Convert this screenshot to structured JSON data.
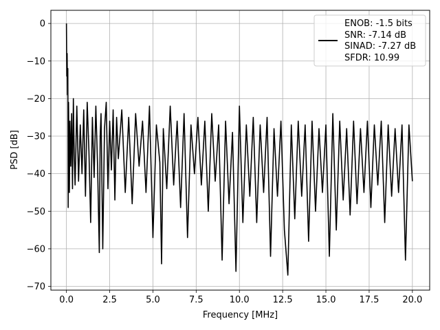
{
  "chart_data": {
    "type": "line",
    "xlabel": "Frequency [MHz]",
    "ylabel": "PSD [dB]",
    "xlim": [
      -0.9,
      21.0
    ],
    "ylim": [
      -71,
      3.5
    ],
    "xticks": [
      0.0,
      2.5,
      5.0,
      7.5,
      10.0,
      12.5,
      15.0,
      17.5,
      20.0
    ],
    "xtick_labels": [
      "0.0",
      "2.5",
      "5.0",
      "7.5",
      "10.0",
      "12.5",
      "15.0",
      "17.5",
      "20.0"
    ],
    "yticks": [
      0,
      -10,
      -20,
      -30,
      -40,
      -50,
      -60,
      -70
    ],
    "ytick_labels": [
      "0",
      "−10",
      "−20",
      "−30",
      "−40",
      "−50",
      "−60",
      "−70"
    ],
    "grid": true,
    "legend_position": "top-right",
    "legend": [
      "ENOB: -1.5 bits",
      "SNR: -7.14 dB",
      "SINAD: -7.27 dB",
      "SFDR: 10.99"
    ],
    "series": [
      {
        "color": "#000000",
        "x": [
          0.0,
          0.02,
          0.04,
          0.06,
          0.08,
          0.1,
          0.12,
          0.14,
          0.17,
          0.2,
          0.25,
          0.3,
          0.35,
          0.4,
          0.45,
          0.5,
          0.6,
          0.7,
          0.8,
          0.9,
          1.0,
          1.1,
          1.2,
          1.3,
          1.4,
          1.5,
          1.6,
          1.7,
          1.8,
          1.9,
          1.95,
          2.0,
          2.1,
          2.2,
          2.3,
          2.4,
          2.5,
          2.6,
          2.7,
          2.8,
          2.9,
          3.0,
          3.2,
          3.4,
          3.6,
          3.8,
          4.0,
          4.2,
          4.4,
          4.6,
          4.8,
          5.0,
          5.2,
          5.4,
          5.5,
          5.6,
          5.8,
          6.0,
          6.2,
          6.4,
          6.6,
          6.8,
          7.0,
          7.2,
          7.4,
          7.6,
          7.8,
          8.0,
          8.2,
          8.4,
          8.6,
          8.8,
          9.0,
          9.2,
          9.4,
          9.6,
          9.8,
          10.0,
          10.2,
          10.4,
          10.6,
          10.8,
          11.0,
          11.2,
          11.4,
          11.6,
          11.8,
          12.0,
          12.2,
          12.4,
          12.6,
          12.8,
          13.0,
          13.2,
          13.4,
          13.6,
          13.8,
          14.0,
          14.2,
          14.4,
          14.6,
          14.8,
          15.0,
          15.2,
          15.4,
          15.6,
          15.8,
          16.0,
          16.2,
          16.4,
          16.6,
          16.8,
          17.0,
          17.2,
          17.4,
          17.6,
          17.8,
          18.0,
          18.2,
          18.4,
          18.6,
          18.8,
          19.0,
          19.2,
          19.4,
          19.6,
          19.8,
          20.0
        ],
        "y": [
          0.0,
          -14.0,
          -8.0,
          -19.0,
          -12.0,
          -49.0,
          -21.0,
          -30.0,
          -45.0,
          -26.0,
          -38.0,
          -24.0,
          -44.0,
          -20.0,
          -35.0,
          -43.0,
          -22.0,
          -42.0,
          -27.0,
          -40.0,
          -23.0,
          -46.0,
          -21.0,
          -34.0,
          -53.0,
          -25.0,
          -41.0,
          -22.0,
          -38.0,
          -61.0,
          -30.0,
          -24.0,
          -60.0,
          -28.0,
          -21.0,
          -44.0,
          -26.0,
          -39.0,
          -23.0,
          -47.0,
          -25.0,
          -36.0,
          -23.0,
          -45.0,
          -25.0,
          -48.0,
          -24.0,
          -38.0,
          -26.0,
          -45.0,
          -22.0,
          -57.0,
          -27.0,
          -37.0,
          -64.0,
          -28.0,
          -44.0,
          -22.0,
          -43.0,
          -26.0,
          -49.0,
          -24.0,
          -57.0,
          -27.0,
          -40.0,
          -25.0,
          -43.0,
          -26.0,
          -50.0,
          -24.0,
          -42.0,
          -27.0,
          -63.0,
          -26.0,
          -48.0,
          -29.0,
          -66.0,
          -22.0,
          -53.0,
          -27.0,
          -46.0,
          -25.0,
          -53.0,
          -27.0,
          -45.0,
          -25.0,
          -62.0,
          -28.0,
          -46.0,
          -26.0,
          -55.0,
          -67.0,
          -27.0,
          -52.0,
          -26.0,
          -46.0,
          -27.0,
          -58.0,
          -26.0,
          -50.0,
          -28.0,
          -45.0,
          -27.0,
          -62.0,
          -24.0,
          -55.0,
          -26.0,
          -47.0,
          -28.0,
          -51.0,
          -26.0,
          -48.0,
          -28.0,
          -45.0,
          -26.0,
          -49.0,
          -27.0,
          -43.0,
          -26.0,
          -53.0,
          -27.0,
          -46.0,
          -28.0,
          -45.0,
          -27.0,
          -63.0,
          -27.0,
          -42.0
        ]
      }
    ]
  }
}
